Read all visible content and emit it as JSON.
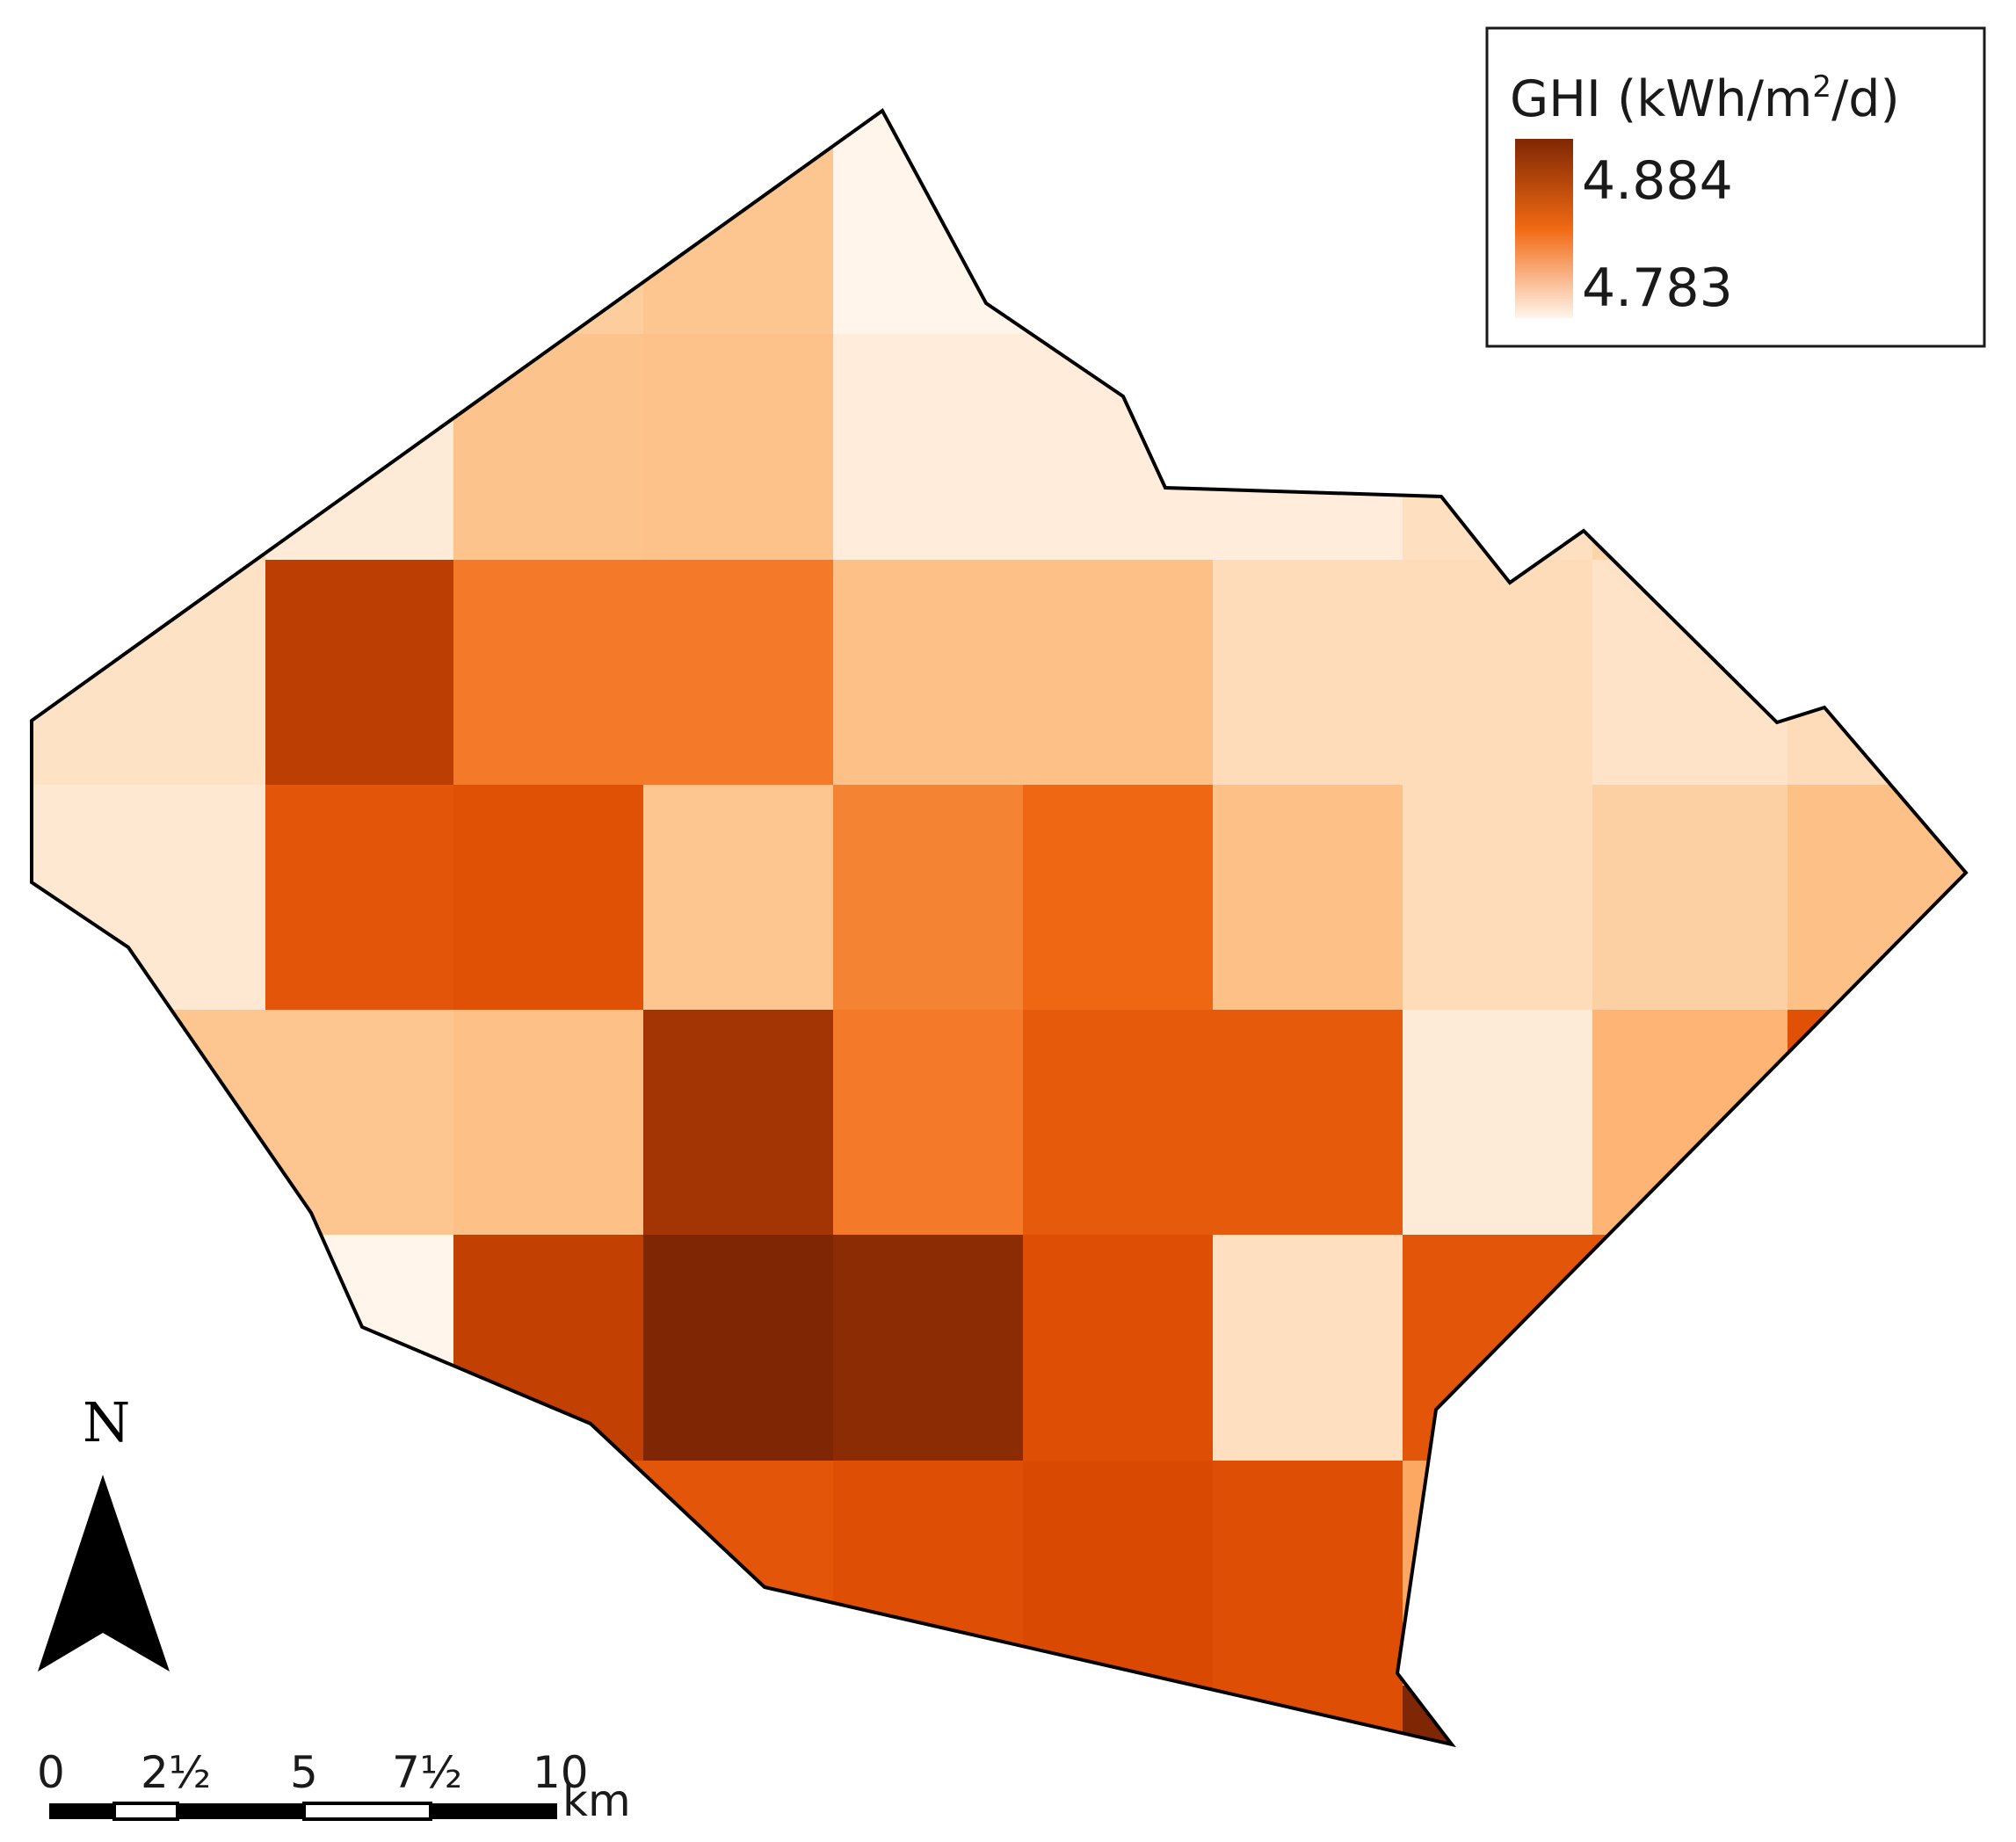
{
  "legend": {
    "title_prefix": "GHI (kWh/m",
    "title_superscript": "2",
    "title_suffix": "/d)",
    "max_label": "4.884",
    "min_label": "4.783",
    "max_value": 4.884,
    "min_value": 4.783,
    "color_low": "#fff5eb",
    "color_mid": "#f16913",
    "color_high": "#7f2704"
  },
  "north_arrow": {
    "label": "N",
    "icon": "north-arrow-icon"
  },
  "scale_bar": {
    "labels": [
      "0",
      "2½",
      "5",
      "7½",
      "10"
    ],
    "unit": "km"
  },
  "raster": {
    "columns": 10,
    "rows": 7,
    "cell_values": [
      [
        4.785,
        4.79,
        4.81,
        4.815,
        4.783,
        4.787,
        4.795,
        4.8,
        4.805,
        4.808
      ],
      [
        4.805,
        4.79,
        4.816,
        4.817,
        4.789,
        4.789,
        4.789,
        4.798,
        4.805,
        4.808
      ],
      [
        4.796,
        4.87,
        4.84,
        4.84,
        4.818,
        4.818,
        4.8,
        4.8,
        4.795,
        4.8
      ],
      [
        4.792,
        4.855,
        4.858,
        4.815,
        4.838,
        4.845,
        4.818,
        4.8,
        4.808,
        4.818
      ],
      [
        4.815,
        4.815,
        4.818,
        4.876,
        4.84,
        4.853,
        4.853,
        4.79,
        4.825,
        4.858
      ],
      [
        4.783,
        4.783,
        4.869,
        4.884,
        4.881,
        4.86,
        4.798,
        4.855,
        4.855,
        4.855
      ],
      [
        4.855,
        4.855,
        4.855,
        4.855,
        4.86,
        4.863,
        4.86,
        4.83,
        4.83,
        4.83
      ]
    ],
    "corner_value": 4.884
  }
}
